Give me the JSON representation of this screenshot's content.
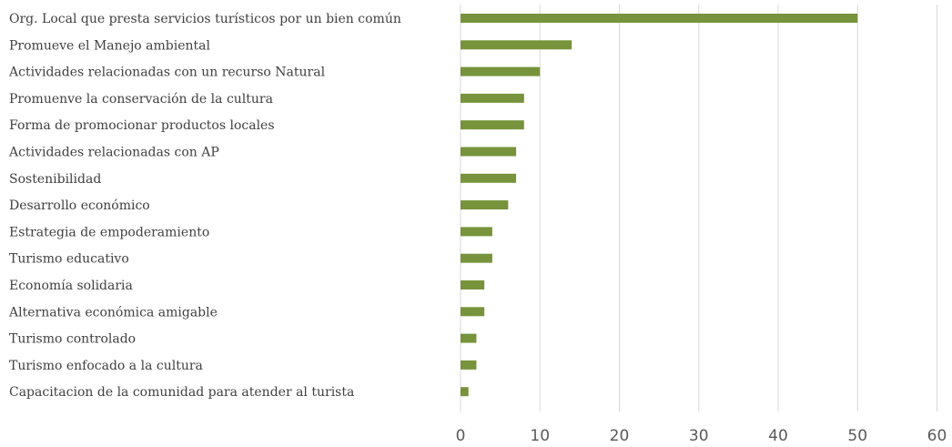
{
  "chart_data": {
    "type": "bar",
    "orientation": "horizontal",
    "categories": [
      "Org. Local que presta servicios turísticos por un bien común",
      "Promueve el Manejo ambiental",
      "Actividades relacionadas con un recurso Natural",
      "Promuenve la conservación de la cultura",
      "Forma de promocionar productos locales",
      "Actividades relacionadas con AP",
      "Sostenibilidad",
      "Desarrollo económico",
      "Estrategia de empoderamiento",
      "Turismo educativo",
      "Economía solidaria",
      "Alternativa económica amigable",
      "Turismo controlado",
      "Turismo enfocado a la cultura",
      "Capacitacion de la comunidad para atender al turista"
    ],
    "values": [
      50,
      14,
      10,
      8,
      8,
      7,
      7,
      6,
      4,
      4,
      3,
      3,
      2,
      2,
      1
    ],
    "xlim": [
      0,
      60
    ],
    "x_ticks": [
      "0",
      "10",
      "20",
      "30",
      "40",
      "50",
      "60"
    ],
    "grid": "vertical",
    "legend": "none",
    "bar_color": "#77933c",
    "grid_color": "#d9d9d9",
    "label_color": "#404040",
    "tick_color": "#595959"
  }
}
